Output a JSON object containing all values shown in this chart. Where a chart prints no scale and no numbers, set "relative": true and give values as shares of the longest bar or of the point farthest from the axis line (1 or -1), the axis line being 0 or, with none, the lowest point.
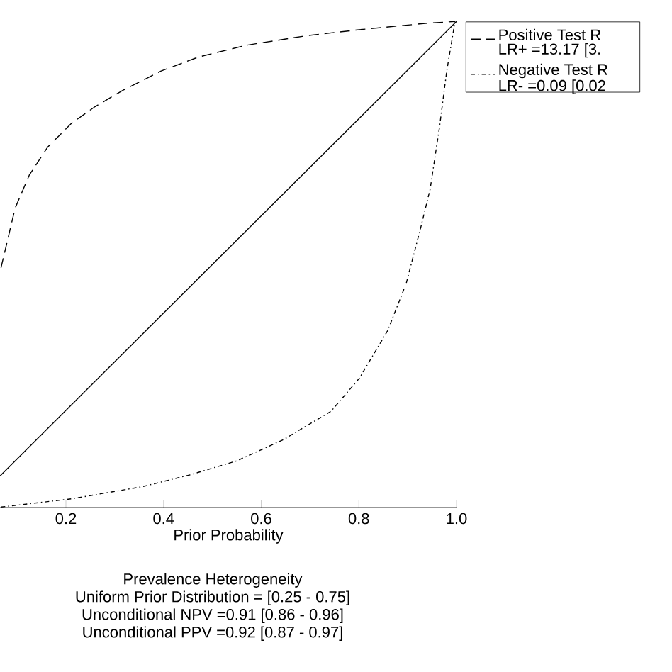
{
  "chart_data": {
    "type": "line",
    "relative": true,
    "xlabel": "Prior Probability",
    "xlim": [
      0.065,
      1.0
    ],
    "xticks": [
      {
        "value": 0.2,
        "label": "0.2"
      },
      {
        "value": 0.4,
        "label": "0.4"
      },
      {
        "value": 0.6,
        "label": "0.6"
      },
      {
        "value": 0.8,
        "label": "0.8"
      },
      {
        "value": 1.0,
        "label": "1.0"
      }
    ],
    "legend": "top right",
    "marker": "none",
    "series": [
      {
        "color": "#000000",
        "line_style": "solid",
        "x": [
          0.065,
          1.0
        ],
        "values": [
          0.065,
          1.0
        ]
      },
      {
        "name": "Positive Test R LR+ =13.17 [3.",
        "color": "#000000",
        "line_style": "dashed",
        "x": [
          0.067,
          0.096,
          0.125,
          0.163,
          0.212,
          0.26,
          0.318,
          0.395,
          0.472,
          0.569,
          0.695,
          0.801,
          0.936,
          0.997
        ],
        "values": [
          0.493,
          0.616,
          0.684,
          0.742,
          0.791,
          0.825,
          0.859,
          0.898,
          0.927,
          0.951,
          0.971,
          0.983,
          0.996,
          1.0
        ]
      },
      {
        "name": "Negative Test R LR- =0.09 [0.02",
        "color": "#000000",
        "line_style": "dashdot",
        "x": [
          0.067,
          0.212,
          0.357,
          0.453,
          0.55,
          0.646,
          0.743,
          0.801,
          0.859,
          0.897,
          0.927,
          0.946,
          0.965,
          0.98,
          0.997
        ],
        "values": [
          0.001,
          0.018,
          0.043,
          0.067,
          0.096,
          0.14,
          0.198,
          0.266,
          0.364,
          0.461,
          0.577,
          0.655,
          0.781,
          0.898,
          1.0
        ]
      }
    ],
    "annotations": [
      "Prevalence Heterogeneity",
      "Uniform Prior Distribution = [0.25 - 0.75]",
      "Unconditional NPV =0.91 [0.86 - 0.96]",
      "Unconditional PPV =0.92 [0.87 - 0.97]"
    ]
  }
}
